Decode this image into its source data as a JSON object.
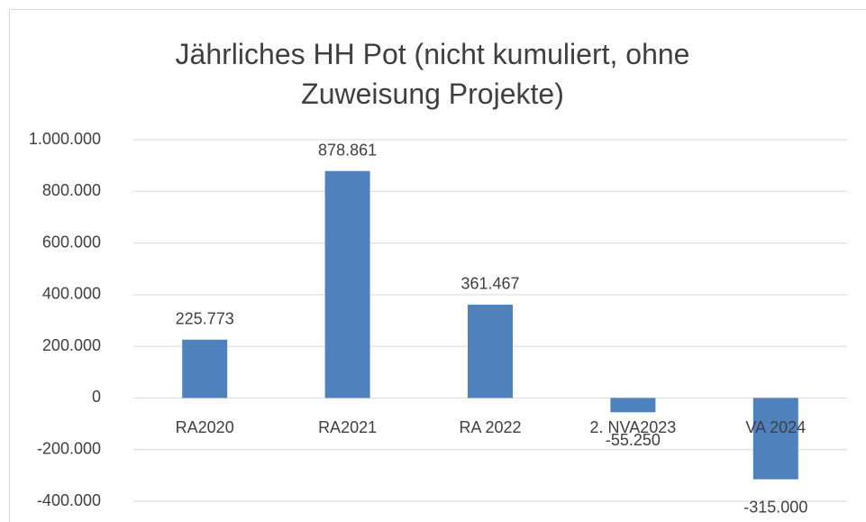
{
  "chart_data": {
    "type": "bar",
    "title": "Jährliches HH Pot (nicht kumuliert, ohne Zuweisung Projekte)",
    "categories": [
      "RA2020",
      "RA2021",
      "RA 2022",
      "2. NVA2023",
      "VA 2024"
    ],
    "values": [
      225773,
      878861,
      361467,
      -55250,
      -315000
    ],
    "value_labels": [
      "225.773",
      "878.861",
      "361.467",
      "-55.250",
      "-315.000"
    ],
    "color": "#4f81bd",
    "ylim": [
      -400000,
      1000000
    ],
    "yticks": [
      {
        "value": -400000,
        "label": "-400.000"
      },
      {
        "value": -200000,
        "label": "-200.000"
      },
      0,
      {
        "value": 200000,
        "label": "200.000"
      },
      {
        "value": 400000,
        "label": "400.000"
      },
      {
        "value": 600000,
        "label": "600.000"
      },
      {
        "value": 800000,
        "label": "800.000"
      },
      {
        "value": 1000000,
        "label": "1.000.000"
      }
    ],
    "grid": true
  }
}
